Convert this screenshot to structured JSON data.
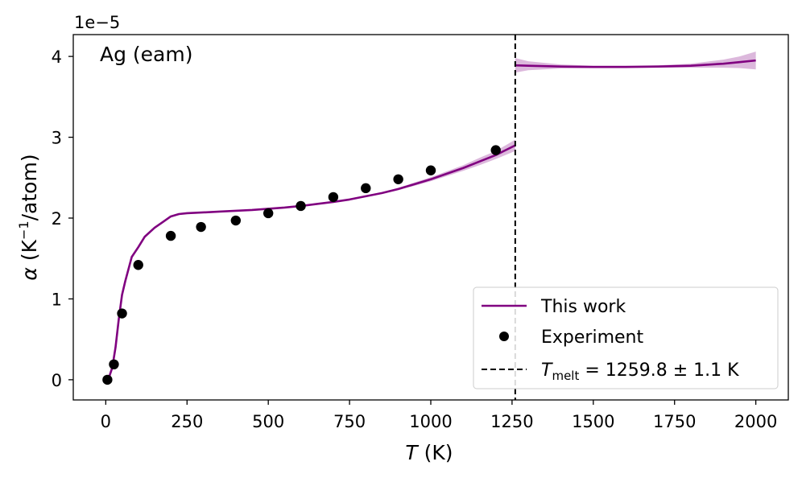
{
  "chart_data": {
    "type": "line",
    "annotation": "Ag (eam)",
    "xlabel": {
      "symbol": "T",
      "unit": " (K)"
    },
    "ylabel": {
      "symbol": "α",
      "unit_open": " (K",
      "unit_sup": "−1",
      "unit_close": "/atom)"
    },
    "offset_text": "1e−5",
    "xlim": [
      -100,
      2100
    ],
    "ylim": [
      -0.25,
      4.27
    ],
    "y_scale_factor": "1e-5",
    "x_ticks": [
      0,
      250,
      500,
      750,
      1000,
      1250,
      1500,
      1750,
      2000
    ],
    "x_tick_labels": [
      "0",
      "250",
      "500",
      "750",
      "1000",
      "1250",
      "1500",
      "1750",
      "2000"
    ],
    "y_ticks": [
      0,
      1,
      2,
      3,
      4
    ],
    "y_tick_labels": [
      "0",
      "1",
      "2",
      "3",
      "4"
    ],
    "grid": false,
    "legend_position": "lower-right",
    "series": [
      {
        "name": "This work",
        "kind": "line",
        "color": "#800080",
        "segments": [
          {
            "x": [
              0,
              10,
              20,
              30,
              40,
              50,
              60,
              80,
              100,
              120,
              150,
              175,
              200,
              225,
              250,
              300,
              350,
              400,
              450,
              500,
              550,
              600,
              650,
              700,
              750,
              800,
              850,
              900,
              950,
              1000,
              1050,
              1100,
              1150,
              1200,
              1230,
              1259.8
            ],
            "y": [
              0.0,
              0.03,
              0.15,
              0.4,
              0.75,
              1.05,
              1.22,
              1.52,
              1.64,
              1.77,
              1.88,
              1.95,
              2.02,
              2.05,
              2.06,
              2.07,
              2.08,
              2.09,
              2.1,
              2.115,
              2.13,
              2.15,
              2.175,
              2.2,
              2.23,
              2.27,
              2.31,
              2.36,
              2.42,
              2.48,
              2.55,
              2.62,
              2.7,
              2.78,
              2.84,
              2.9
            ],
            "band_lower": [
              0.0,
              0.03,
              0.15,
              0.4,
              0.75,
              1.05,
              1.22,
              1.52,
              1.64,
              1.77,
              1.88,
              1.95,
              2.02,
              2.05,
              2.06,
              2.07,
              2.08,
              2.09,
              2.1,
              2.115,
              2.13,
              2.15,
              2.175,
              2.2,
              2.225,
              2.26,
              2.3,
              2.345,
              2.4,
              2.455,
              2.52,
              2.585,
              2.655,
              2.73,
              2.78,
              2.83
            ],
            "band_upper": [
              0.0,
              0.03,
              0.15,
              0.4,
              0.75,
              1.05,
              1.22,
              1.52,
              1.64,
              1.77,
              1.88,
              1.95,
              2.02,
              2.05,
              2.06,
              2.07,
              2.08,
              2.09,
              2.1,
              2.115,
              2.13,
              2.15,
              2.175,
              2.2,
              2.235,
              2.28,
              2.32,
              2.375,
              2.44,
              2.505,
              2.58,
              2.655,
              2.745,
              2.83,
              2.9,
              2.97
            ]
          },
          {
            "x": [
              1259.8,
              1300,
              1400,
              1500,
              1600,
              1700,
              1800,
              1900,
              1950,
              2000
            ],
            "y": [
              3.89,
              3.885,
              3.875,
              3.87,
              3.87,
              3.875,
              3.885,
              3.91,
              3.93,
              3.95
            ],
            "band_lower": [
              3.8,
              3.83,
              3.85,
              3.855,
              3.855,
              3.86,
              3.86,
              3.86,
              3.855,
              3.84
            ],
            "band_upper": [
              3.98,
              3.94,
              3.9,
              3.885,
              3.885,
              3.89,
              3.91,
              3.96,
              4.0,
              4.06
            ]
          }
        ]
      },
      {
        "name": "Experiment",
        "kind": "scatter",
        "color": "#000000",
        "x": [
          5,
          25,
          50,
          100,
          200,
          293,
          400,
          500,
          600,
          700,
          800,
          900,
          1000,
          1200
        ],
        "y": [
          0.0,
          0.19,
          0.82,
          1.42,
          1.78,
          1.89,
          1.97,
          2.06,
          2.15,
          2.26,
          2.37,
          2.48,
          2.59,
          2.84
        ]
      },
      {
        "name": "T_melt = 1259.8 ± 1.1 K",
        "kind": "vline",
        "color": "#000000",
        "x": 1259.8
      }
    ],
    "legend": [
      {
        "kind": "line",
        "label": "This work"
      },
      {
        "kind": "scatter",
        "label": "Experiment"
      },
      {
        "kind": "vline",
        "label_symbol": "T",
        "label_sub": "melt",
        "label_rest": " = 1259.8 ± 1.1 K"
      }
    ]
  }
}
